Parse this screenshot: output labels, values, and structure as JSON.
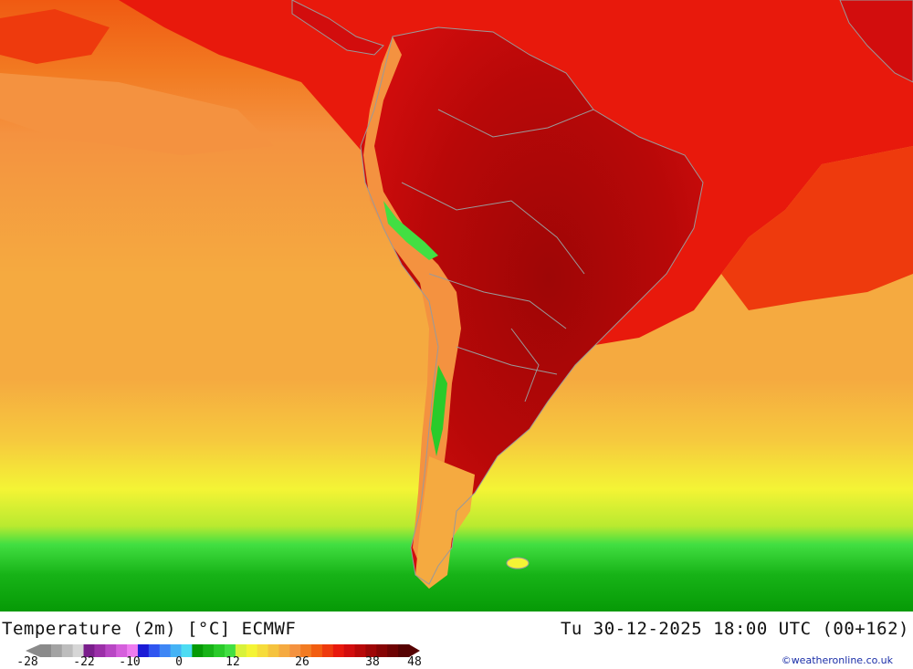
{
  "title": "Temperature (2m) [°C] ECMWF",
  "datetime": "Tu 30-12-2025 18:00 UTC (00+162)",
  "credit": "©weatheronline.co.uk",
  "legend": {
    "colors": [
      "#8a8a8a",
      "#a3a3a3",
      "#bdbdbd",
      "#d6d6d6",
      "#7a1e8c",
      "#9b2fa8",
      "#b846c4",
      "#d55fdc",
      "#ee7cf0",
      "#1b1bd6",
      "#2f55f0",
      "#3e86f5",
      "#45b3f5",
      "#4ddcf2",
      "#069a06",
      "#17b317",
      "#2acb2a",
      "#42df42",
      "#d8f23a",
      "#f4f435",
      "#f6dc3b",
      "#f5c33e",
      "#f5aa40",
      "#f49240",
      "#f27b22",
      "#f25d10",
      "#ee3a0d",
      "#e8190c",
      "#d20d0d",
      "#b80808",
      "#9e0606",
      "#860404",
      "#6e0303",
      "#560202"
    ],
    "tick_labels": [
      "-28",
      "-22",
      "-10",
      "0",
      "12",
      "26",
      "38",
      "48"
    ]
  },
  "map": {
    "ocean_colors": [
      "#f27b22",
      "#f49240",
      "#f5aa40",
      "#f5c33e",
      "#f4f435",
      "#d8f23a",
      "#42df42",
      "#17b317",
      "#069a06"
    ],
    "land_colors": [
      "#ee3a0d",
      "#e8190c",
      "#d20d0d",
      "#b80808",
      "#9e0606",
      "#860404"
    ],
    "border_color": "#9a9a9a"
  }
}
